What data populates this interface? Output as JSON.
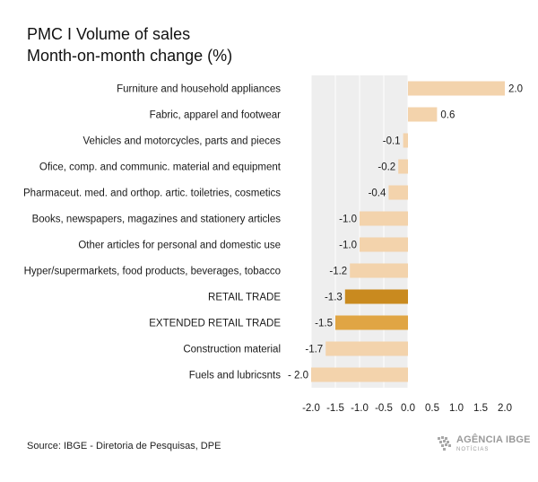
{
  "header": {
    "title_line1": "PMC I Volume of sales",
    "title_line2": "Month-on-month change (%)"
  },
  "footer": {
    "source": "Source: IBGE - Diretoria de Pesquisas, DPE",
    "logo_brand": "AGÊNCIA IBGE",
    "logo_sub": "NOTÍCIAS"
  },
  "colors": {
    "bar_default": "#f3d3ac",
    "bar_retail_trade": "#c98a1f",
    "bar_extended_retail_trade": "#e0a544",
    "plot_band": "#eeeeee",
    "gridline": "#ffffff"
  },
  "chart_data": {
    "type": "bar",
    "orientation": "horizontal",
    "categories": [
      "Furniture and household appliances",
      "Fabric, apparel and footwear",
      "Vehicles and motorcycles, parts and pieces",
      "Ofice, comp. and communic. material and equipment",
      "Pharmaceut. med. and orthop. artic. toiletries, cosmetics",
      "Books, newspapers, magazines and stationery articles",
      "Other articles for personal and domestic use",
      "Hyper/supermarkets, food products, beverages, tobacco",
      "RETAIL TRADE",
      "EXTENDED RETAIL TRADE",
      "Construction material",
      "Fuels and lubricsnts"
    ],
    "values": [
      2.0,
      0.6,
      -0.1,
      -0.2,
      -0.4,
      -1.0,
      -1.0,
      -1.2,
      -1.3,
      -1.5,
      -1.7,
      -2.0
    ],
    "data_labels": [
      "2.0",
      "0.6",
      "-0.1",
      "-0.2",
      "-0.4",
      "-1.0",
      "-1.0",
      "-1.2",
      "-1.3",
      "-1.5",
      "-1.7",
      "- 2.0"
    ],
    "highlight": [
      "RETAIL TRADE",
      "EXTENDED RETAIL TRADE"
    ],
    "xlim": [
      -2.0,
      2.0
    ],
    "x_ticks": [
      "-2.0",
      "-1.5",
      "-1.0",
      "-0.5",
      "0.0",
      "0.5",
      "1.0",
      "1.5",
      "2.0"
    ],
    "xlabel": "",
    "ylabel": "",
    "grid": "vertical gridlines",
    "legend": "none"
  }
}
